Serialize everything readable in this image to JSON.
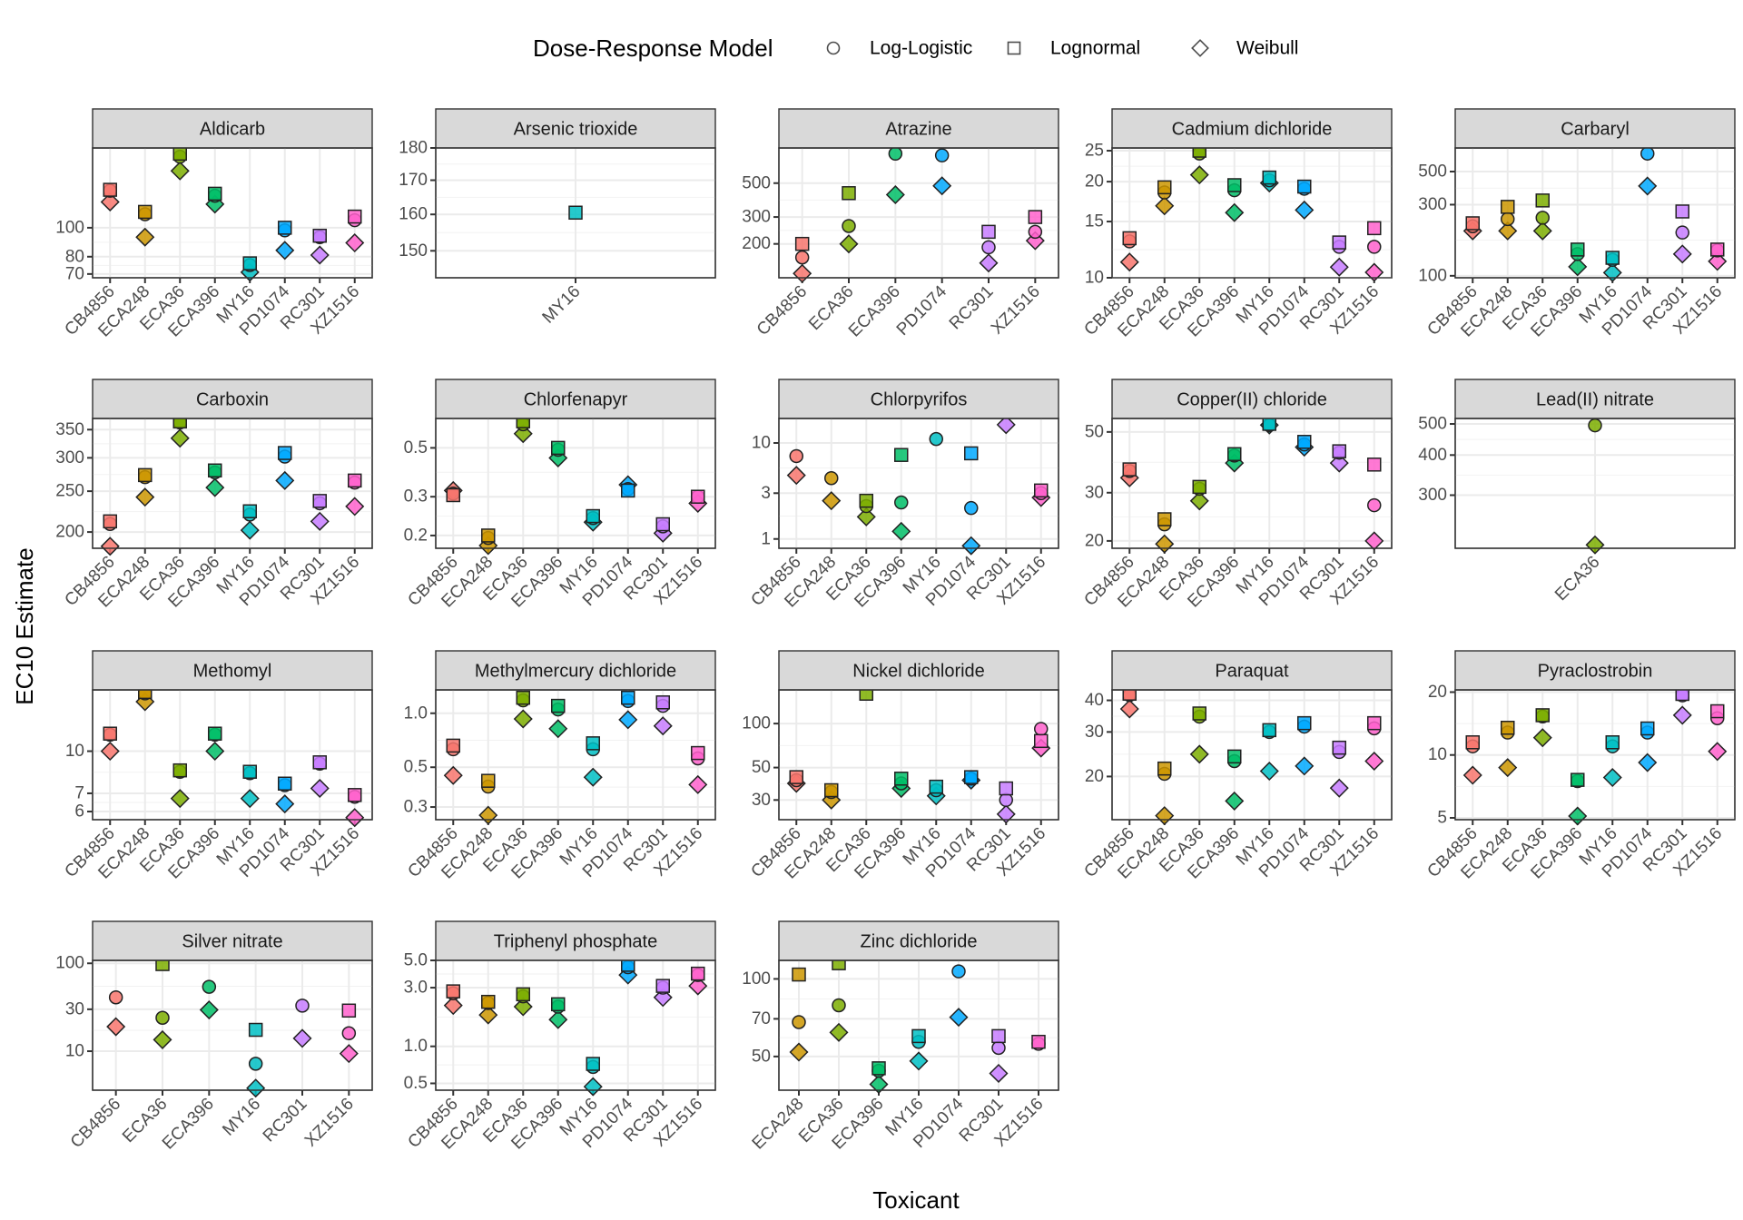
{
  "chart_data": {
    "type": "scatter",
    "layout": "faceted",
    "xlabel": "Toxicant",
    "ylabel": "EC10 Estimate",
    "y_scale": "log",
    "legend": {
      "title": "Dose-Response Model",
      "position": "top",
      "entries": [
        {
          "name": "Log-Logistic",
          "shape": "circle"
        },
        {
          "name": "Lognormal",
          "shape": "square"
        },
        {
          "name": "Weibull",
          "shape": "diamond"
        }
      ]
    },
    "strain_colors": {
      "CB4856": "#F8766D",
      "ECA248": "#CD9600",
      "ECA36": "#7CAE00",
      "ECA396": "#00BE67",
      "MY16": "#00BFC4",
      "PD1074": "#00A9FF",
      "RC301": "#C77CFF",
      "XZ1516": "#FF61CC"
    },
    "series_order": [
      "Log-Logistic",
      "Lognormal",
      "Weibull"
    ],
    "facets": [
      {
        "title": "Aldicarb",
        "ylim": [
          68,
          185
        ],
        "yticks": [
          70,
          80,
          100
        ],
        "yticklabels": [
          "70",
          "80",
          "100"
        ],
        "categories": [
          "CB4856",
          "ECA248",
          "ECA36",
          "ECA396",
          "MY16",
          "PD1074",
          "RC301",
          "XZ1516"
        ],
        "values": {
          "Log-Logistic": [
            133,
            111,
            173,
            128,
            75,
            98,
            93,
            106
          ],
          "Lognormal": [
            134,
            113,
            177,
            130,
            76,
            100,
            94,
            109
          ],
          "Weibull": [
            122,
            93,
            155,
            120,
            71,
            84,
            81,
            89
          ]
        }
      },
      {
        "title": "Arsenic trioxide",
        "ylim": [
          143,
          180
        ],
        "yticks": [
          150,
          160,
          170,
          180
        ],
        "yticklabels": [
          "150",
          "160",
          "170",
          "180"
        ],
        "categories": [
          "MY16"
        ],
        "values": {
          "Log-Logistic": [
            null
          ],
          "Lognormal": [
            160.5
          ],
          "Weibull": [
            null
          ]
        }
      },
      {
        "title": "Atrazine",
        "ylim": [
          120,
          850
        ],
        "yticks": [
          200,
          300,
          500
        ],
        "yticklabels": [
          "200",
          "300",
          "500"
        ],
        "categories": [
          "CB4856",
          "ECA36",
          "ECA396",
          "PD1074",
          "RC301",
          "XZ1516"
        ],
        "values": {
          "Log-Logistic": [
            163,
            262,
            780,
            760,
            190,
            240
          ],
          "Lognormal": [
            200,
            430,
            null,
            null,
            240,
            300
          ],
          "Weibull": [
            128,
            200,
            420,
            480,
            150,
            210
          ]
        }
      },
      {
        "title": "Cadmium dichloride",
        "ylim": [
          10,
          25.5
        ],
        "yticks": [
          10,
          15,
          20,
          25
        ],
        "yticklabels": [
          "10",
          "15",
          "20",
          "25"
        ],
        "categories": [
          "CB4856",
          "ECA248",
          "ECA36",
          "ECA396",
          "MY16",
          "PD1074",
          "RC301",
          "XZ1516"
        ],
        "values": {
          "Log-Logistic": [
            13.0,
            18.5,
            24.5,
            18.8,
            20.2,
            19.0,
            12.5,
            12.5
          ],
          "Lognormal": [
            13.3,
            19.2,
            25.0,
            19.5,
            20.6,
            19.3,
            12.9,
            14.3
          ],
          "Weibull": [
            11.2,
            16.8,
            21.0,
            16.0,
            19.8,
            16.3,
            10.8,
            10.4
          ]
        }
      },
      {
        "title": "Carbaryl",
        "ylim": [
          97,
          720
        ],
        "yticks": [
          100,
          300,
          500
        ],
        "yticklabels": [
          "100",
          "300",
          "500"
        ],
        "categories": [
          "CB4856",
          "ECA248",
          "ECA36",
          "ECA396",
          "MY16",
          "PD1074",
          "RC301",
          "XZ1516"
        ],
        "values": {
          "Log-Logistic": [
            215,
            240,
            245,
            140,
            128,
            660,
            195,
            148
          ],
          "Lognormal": [
            225,
            290,
            320,
            150,
            132,
            null,
            270,
            150
          ],
          "Weibull": [
            200,
            200,
            200,
            115,
            105,
            400,
            140,
            125
          ]
        }
      },
      {
        "title": "Carboxin",
        "ylim": [
          183,
          372
        ],
        "yticks": [
          200,
          250,
          300,
          350
        ],
        "yticklabels": [
          "200",
          "250",
          "300",
          "350"
        ],
        "categories": [
          "CB4856",
          "ECA248",
          "ECA36",
          "ECA396",
          "MY16",
          "PD1074",
          "RC301",
          "XZ1516"
        ],
        "values": {
          "Log-Logistic": [
            209,
            270,
            364,
            277,
            220,
            302,
            234,
            262
          ],
          "Lognormal": [
            212,
            273,
            366,
            280,
            224,
            308,
            237,
            265
          ],
          "Weibull": [
            185,
            242,
            334,
            255,
            202,
            265,
            212,
            230
          ]
        }
      },
      {
        "title": "Chlorfenapyr",
        "ylim": [
          0.175,
          0.68
        ],
        "yticks": [
          0.2,
          0.3,
          0.5
        ],
        "yticklabels": [
          "0.2",
          "0.3",
          "0.5"
        ],
        "categories": [
          "CB4856",
          "ECA248",
          "ECA36",
          "ECA396",
          "MY16",
          "PD1074",
          "RC301",
          "XZ1516"
        ],
        "values": {
          "Log-Logistic": [
            0.31,
            0.195,
            0.64,
            0.49,
            0.24,
            0.325,
            0.22,
            0.3
          ],
          "Lognormal": [
            0.305,
            0.2,
            0.66,
            0.5,
            0.245,
            0.32,
            0.225,
            0.3
          ],
          "Weibull": [
            0.32,
            0.18,
            0.58,
            0.45,
            0.23,
            0.34,
            0.205,
            0.28
          ]
        }
      },
      {
        "title": "Chlorpyrifos",
        "ylim": [
          0.8,
          18
        ],
        "yticks": [
          1,
          3,
          10
        ],
        "yticklabels": [
          "1",
          "3",
          "10"
        ],
        "categories": [
          "CB4856",
          "ECA248",
          "ECA36",
          "ECA396",
          "MY16",
          "PD1074",
          "RC301",
          "XZ1516"
        ],
        "values": {
          "Log-Logistic": [
            7.3,
            4.3,
            2.2,
            2.4,
            11.0,
            2.1,
            null,
            3.0
          ],
          "Lognormal": [
            null,
            null,
            2.5,
            7.5,
            null,
            7.8,
            null,
            3.2
          ],
          "Weibull": [
            4.6,
            2.5,
            1.7,
            1.2,
            null,
            0.85,
            15.5,
            2.7
          ]
        }
      },
      {
        "title": "Copper(II) chloride",
        "ylim": [
          18.8,
          56
        ],
        "yticks": [
          20,
          30,
          50
        ],
        "yticklabels": [
          "20",
          "30",
          "50"
        ],
        "categories": [
          "CB4856",
          "ECA248",
          "ECA36",
          "ECA396",
          "MY16",
          "PD1074",
          "RC301",
          "XZ1516"
        ],
        "values": {
          "Log-Logistic": [
            36,
            23,
            31,
            41,
            53,
            45,
            42,
            27
          ],
          "Lognormal": [
            36.5,
            24,
            31.5,
            41.5,
            53.5,
            46,
            42.5,
            38
          ],
          "Weibull": [
            34,
            19.5,
            28,
            38.5,
            53,
            44,
            38.5,
            20
          ]
        }
      },
      {
        "title": "Lead(II) nitrate",
        "ylim": [
          205,
          520
        ],
        "yticks": [
          300,
          400,
          500
        ],
        "yticklabels": [
          "300",
          "400",
          "500"
        ],
        "categories": [
          "ECA36"
        ],
        "values": {
          "Log-Logistic": [
            495
          ],
          "Lognormal": [
            null
          ],
          "Weibull": [
            210
          ]
        }
      },
      {
        "title": "Methomyl",
        "ylim": [
          5.6,
          16.8
        ],
        "yticks": [
          6,
          7,
          10
        ],
        "yticklabels": [
          "6",
          "7",
          "10"
        ],
        "categories": [
          "CB4856",
          "ECA248",
          "ECA36",
          "ECA396",
          "MY16",
          "PD1074",
          "RC301",
          "XZ1516"
        ],
        "values": {
          "Log-Logistic": [
            11.5,
            16.3,
            8.4,
            11.5,
            8.3,
            7.5,
            9.0,
            6.8
          ],
          "Lognormal": [
            11.6,
            16.5,
            8.5,
            11.6,
            8.4,
            7.6,
            9.1,
            6.9
          ],
          "Weibull": [
            10.0,
            15.2,
            6.7,
            10.0,
            6.7,
            6.4,
            7.3,
            5.7
          ]
        }
      },
      {
        "title": "Methylmercury dichloride",
        "ylim": [
          0.255,
          1.35
        ],
        "yticks": [
          0.3,
          0.5,
          1.0
        ],
        "yticklabels": [
          "0.3",
          "0.5",
          "1.0"
        ],
        "categories": [
          "CB4856",
          "ECA248",
          "ECA36",
          "ECA396",
          "MY16",
          "PD1074",
          "RC301",
          "XZ1516"
        ],
        "values": {
          "Log-Logistic": [
            0.63,
            0.39,
            1.18,
            1.05,
            0.63,
            1.17,
            1.1,
            0.56
          ],
          "Lognormal": [
            0.66,
            0.42,
            1.22,
            1.1,
            0.68,
            1.22,
            1.15,
            0.6
          ],
          "Weibull": [
            0.45,
            0.27,
            0.93,
            0.82,
            0.44,
            0.92,
            0.85,
            0.4
          ]
        }
      },
      {
        "title": "Nickel dichloride",
        "ylim": [
          22,
          170
        ],
        "yticks": [
          30,
          50,
          100
        ],
        "yticklabels": [
          "30",
          "50",
          "100"
        ],
        "categories": [
          "CB4856",
          "ECA248",
          "ECA36",
          "ECA396",
          "MY16",
          "PD1074",
          "RC301",
          "XZ1516"
        ],
        "values": {
          "Log-Logistic": [
            41,
            34,
            null,
            39,
            35,
            42,
            30,
            92
          ],
          "Lognormal": [
            43,
            35,
            160,
            42,
            37,
            43,
            36,
            76
          ],
          "Weibull": [
            39,
            30,
            null,
            36,
            32,
            41,
            24,
            68
          ]
        }
      },
      {
        "title": "Paraquat",
        "ylim": [
          13.5,
          44
        ],
        "yticks": [
          20,
          30,
          40
        ],
        "yticklabels": [
          "20",
          "30",
          "40"
        ],
        "categories": [
          "CB4856",
          "ECA248",
          "ECA36",
          "ECA396",
          "MY16",
          "PD1074",
          "RC301",
          "XZ1516"
        ],
        "values": {
          "Log-Logistic": [
            42,
            20.5,
            34.5,
            23,
            30,
            31.5,
            25,
            31
          ],
          "Lognormal": [
            42.5,
            21.5,
            35.5,
            24,
            30.5,
            32.5,
            26,
            32.5
          ],
          "Weibull": [
            37,
            14,
            24.5,
            16,
            21,
            22,
            18,
            23
          ]
        }
      },
      {
        "title": "Pyraclostrobin",
        "ylim": [
          4.9,
          20.5
        ],
        "yticks": [
          5,
          10,
          20
        ],
        "yticklabels": [
          "5",
          "10",
          "20"
        ],
        "categories": [
          "CB4856",
          "ECA248",
          "ECA36",
          "ECA396",
          "MY16",
          "PD1074",
          "RC301",
          "XZ1516"
        ],
        "values": {
          "Log-Logistic": [
            11.0,
            12.8,
            15.3,
            7.5,
            11.0,
            12.8,
            19.3,
            15.0
          ],
          "Lognormal": [
            11.5,
            13.5,
            15.5,
            7.6,
            11.5,
            13.4,
            19.6,
            16.2
          ],
          "Weibull": [
            8.0,
            8.7,
            12.1,
            5.1,
            7.8,
            9.2,
            15.5,
            10.4
          ]
        }
      },
      {
        "title": "Silver nitrate",
        "ylim": [
          3.6,
          108
        ],
        "yticks": [
          10,
          30,
          100
        ],
        "yticklabels": [
          "10",
          "30",
          "100"
        ],
        "categories": [
          "CB4856",
          "ECA36",
          "ECA396",
          "MY16",
          "RC301",
          "XZ1516"
        ],
        "values": {
          "Log-Logistic": [
            41,
            24,
            54,
            7.2,
            33,
            16
          ],
          "Lognormal": [
            null,
            98,
            null,
            17.5,
            null,
            29
          ],
          "Weibull": [
            19,
            13.5,
            29.5,
            3.8,
            14,
            9.4
          ]
        }
      },
      {
        "title": "Triphenyl phosphate",
        "ylim": [
          0.44,
          5.0
        ],
        "yticks": [
          0.5,
          1.0,
          3.0,
          5.0
        ],
        "yticklabels": [
          "0.5",
          "1.0",
          "3.0",
          "5.0"
        ],
        "categories": [
          "CB4856",
          "ECA248",
          "ECA36",
          "ECA396",
          "MY16",
          "PD1074",
          "RC301",
          "XZ1516"
        ],
        "values": {
          "Log-Logistic": [
            2.7,
            2.25,
            2.55,
            2.1,
            0.68,
            4.4,
            3.0,
            3.8
          ],
          "Lognormal": [
            2.8,
            2.3,
            2.65,
            2.2,
            0.72,
            4.6,
            3.1,
            3.9
          ],
          "Weibull": [
            2.15,
            1.8,
            2.1,
            1.65,
            0.47,
            3.8,
            2.5,
            3.1
          ]
        }
      },
      {
        "title": "Zinc dichloride",
        "ylim": [
          37,
          118
        ],
        "yticks": [
          50,
          70,
          100
        ],
        "yticklabels": [
          "50",
          "70",
          "100"
        ],
        "categories": [
          "ECA248",
          "ECA36",
          "ECA396",
          "MY16",
          "PD1074",
          "RC301",
          "XZ1516"
        ],
        "values": {
          "Log-Logistic": [
            68,
            79,
            44,
            57,
            107,
            54,
            56
          ],
          "Lognormal": [
            104,
            115,
            45,
            60,
            null,
            60,
            57
          ],
          "Weibull": [
            52,
            62,
            39,
            48,
            71,
            43,
            null
          ]
        }
      }
    ]
  }
}
